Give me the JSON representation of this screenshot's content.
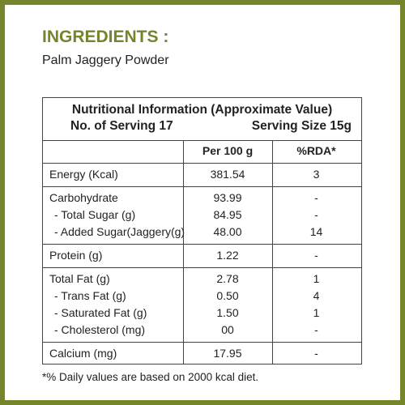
{
  "heading": "INGREDIENTS :",
  "ingredients": "Palm Jaggery Powder",
  "table": {
    "title": "Nutritional Information (Approximate Value)",
    "servings": "No. of Serving 17",
    "serving_size": "Serving Size 15g",
    "columns": [
      "Per 100 g",
      "%RDA*"
    ],
    "groups": [
      [
        [
          "Energy (Kcal)",
          "381.54",
          "3"
        ]
      ],
      [
        [
          "Carbohydrate",
          "93.99",
          "-"
        ],
        [
          "- Total Sugar (g)",
          "84.95",
          "-"
        ],
        [
          "- Added Sugar(Jaggery(g)",
          "48.00",
          "14"
        ]
      ],
      [
        [
          "Protein (g)",
          "1.22",
          "-"
        ]
      ],
      [
        [
          "Total Fat (g)",
          "2.78",
          "1"
        ],
        [
          "- Trans Fat (g)",
          "0.50",
          "4"
        ],
        [
          "- Saturated Fat (g)",
          "1.50",
          "1"
        ],
        [
          "- Cholesterol (mg)",
          "00",
          "-"
        ]
      ],
      [
        [
          "Calcium (mg)",
          "17.95",
          "-"
        ]
      ]
    ]
  },
  "footnote": "*% Daily values are based on 2000 kcal diet."
}
